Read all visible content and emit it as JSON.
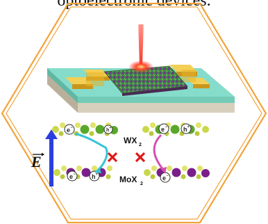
{
  "caption": "optoelectronic devices.",
  "labels": {
    "top_layer": "WX",
    "top_layer_sub": "2",
    "bottom_layer": "MoX",
    "bottom_layer_sub": "2",
    "field": "E",
    "electron": "e",
    "electron_sup": "−",
    "hole": "h",
    "hole_sup": "+"
  },
  "colors": {
    "frame": "#f2a33a",
    "substrate_top": "#7fd6c6",
    "electrode": "#e3b52a",
    "laser": "#e81a1a",
    "field_arrow": "#2b3fe0",
    "transfer_arrow_top": "#35c5d6",
    "transfer_arrow_bottom": "#d64db0",
    "blocked": "#e01818",
    "atom_green": "#5aa82a",
    "atom_purple": "#7a1f8a",
    "atom_yellow": "#cfd84a"
  }
}
